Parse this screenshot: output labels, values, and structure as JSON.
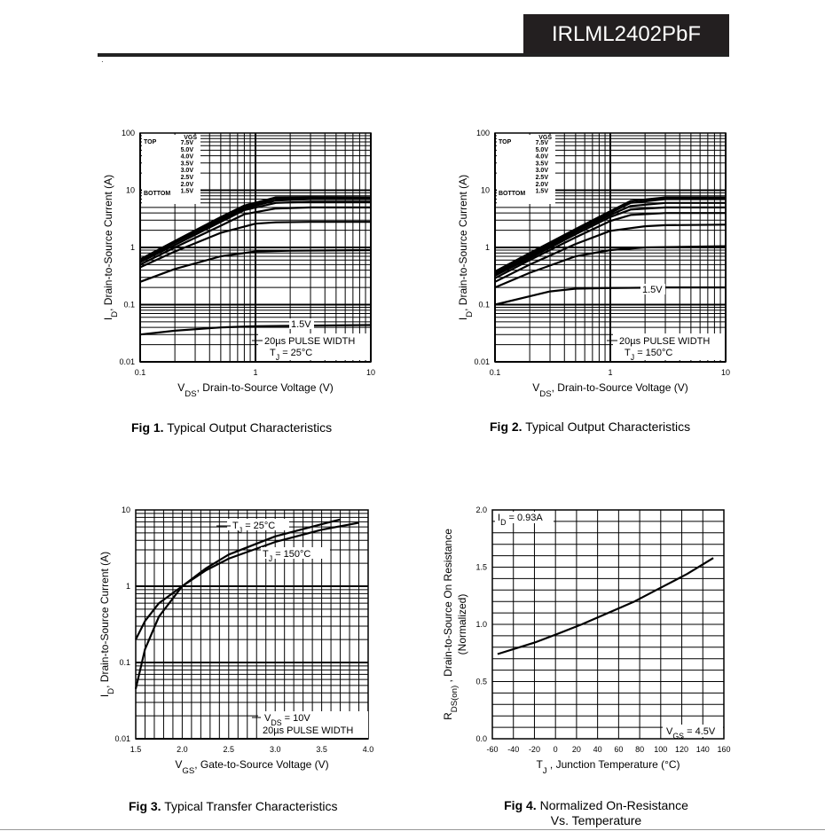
{
  "header": {
    "part_number": "IRLML2402PbF"
  },
  "figures": [
    {
      "fig_label": "Fig 1.",
      "caption": "Typical Output Characteristics"
    },
    {
      "fig_label": "Fig 2.",
      "caption": "Typical Output Characteristics"
    },
    {
      "fig_label": "Fig 3.",
      "caption": "Typical Transfer Characteristics"
    },
    {
      "fig_label": "Fig 4.",
      "caption": "Normalized On-Resistance",
      "caption2": "Vs. Temperature"
    }
  ],
  "chart_data": [
    {
      "type": "line",
      "title": "Typical Output Characteristics",
      "xscale": "log",
      "yscale": "log",
      "xlim": [
        0.1,
        10
      ],
      "ylim": [
        0.01,
        100
      ],
      "x_ticks": [
        "0.1",
        "1",
        "10"
      ],
      "y_ticks": [
        "0.01",
        "0.1",
        "1",
        "10",
        "100"
      ],
      "xlabel": "V_DS, Drain-to-Source Voltage (V)",
      "ylabel": "I_D, Drain-to-Source Current (A)",
      "legend_title": "VGS",
      "legend_top": "TOP",
      "legend_bottom": "BOTTOM",
      "legend": [
        "7.5V",
        "5.0V",
        "4.0V",
        "3.5V",
        "3.0V",
        "2.5V",
        "2.0V",
        "1.5V"
      ],
      "annotations": [
        "1.5V",
        "20µs PULSE WIDTH",
        "T_J = 25°C"
      ],
      "series": [
        {
          "name": "7.5V",
          "x": [
            0.1,
            0.2,
            0.5,
            0.8,
            1.5,
            3,
            10
          ],
          "y": [
            0.62,
            1.3,
            3.4,
            5.4,
            7.5,
            7.6,
            7.5
          ]
        },
        {
          "name": "5.0V",
          "x": [
            0.1,
            0.2,
            0.5,
            0.8,
            1.5,
            3,
            10
          ],
          "y": [
            0.6,
            1.25,
            3.2,
            5.0,
            7.2,
            7.4,
            7.3
          ]
        },
        {
          "name": "4.0V",
          "x": [
            0.1,
            0.2,
            0.5,
            0.8,
            1.5,
            3,
            10
          ],
          "y": [
            0.58,
            1.2,
            3.0,
            4.8,
            6.6,
            7.0,
            7.0
          ]
        },
        {
          "name": "3.5V",
          "x": [
            0.1,
            0.2,
            0.5,
            0.8,
            1.5,
            3,
            10
          ],
          "y": [
            0.55,
            1.1,
            2.8,
            4.5,
            6.0,
            6.3,
            6.3
          ]
        },
        {
          "name": "3.0V",
          "x": [
            0.1,
            0.2,
            0.5,
            0.8,
            1.5,
            3,
            10
          ],
          "y": [
            0.5,
            1.0,
            2.4,
            3.8,
            4.8,
            5.0,
            5.0
          ]
        },
        {
          "name": "2.5V",
          "x": [
            0.1,
            0.2,
            0.5,
            1,
            1.5,
            3,
            10
          ],
          "y": [
            0.45,
            0.85,
            1.8,
            2.6,
            2.75,
            2.8,
            2.8
          ]
        },
        {
          "name": "2.0V",
          "x": [
            0.1,
            0.2,
            0.5,
            1,
            2,
            10
          ],
          "y": [
            0.25,
            0.42,
            0.7,
            0.85,
            0.88,
            0.9
          ]
        },
        {
          "name": "1.5V",
          "x": [
            0.1,
            0.2,
            0.5,
            1,
            3,
            10
          ],
          "y": [
            0.03,
            0.035,
            0.04,
            0.042,
            0.043,
            0.044
          ]
        }
      ]
    },
    {
      "type": "line",
      "title": "Typical Output Characteristics",
      "xscale": "log",
      "yscale": "log",
      "xlim": [
        0.1,
        10
      ],
      "ylim": [
        0.01,
        100
      ],
      "x_ticks": [
        "0.1",
        "1",
        "10"
      ],
      "y_ticks": [
        "0.01",
        "0.1",
        "1",
        "10",
        "100"
      ],
      "xlabel": "V_DS, Drain-to-Source Voltage (V)",
      "ylabel": "I_D, Drain-to-Source Current (A)",
      "legend_title": "VGS",
      "legend_top": "TOP",
      "legend_bottom": "BOTTOM",
      "legend": [
        "7.5V",
        "5.0V",
        "4.0V",
        "3.5V",
        "3.0V",
        "2.5V",
        "2.0V",
        "1.5V"
      ],
      "annotations": [
        "1.5V",
        "20µs PULSE WIDTH",
        "T_J = 150°C"
      ],
      "series": [
        {
          "name": "7.5V",
          "x": [
            0.1,
            0.2,
            0.5,
            1,
            1.5,
            3,
            10
          ],
          "y": [
            0.38,
            0.8,
            2.1,
            4.3,
            6.5,
            7.5,
            7.5
          ]
        },
        {
          "name": "5.0V",
          "x": [
            0.1,
            0.2,
            0.5,
            1,
            1.5,
            3,
            10
          ],
          "y": [
            0.36,
            0.75,
            2.0,
            4.0,
            6.0,
            7.0,
            7.0
          ]
        },
        {
          "name": "4.0V",
          "x": [
            0.1,
            0.2,
            0.5,
            1,
            1.5,
            3,
            10
          ],
          "y": [
            0.34,
            0.7,
            1.85,
            3.7,
            5.3,
            6.0,
            6.0
          ]
        },
        {
          "name": "3.5V",
          "x": [
            0.1,
            0.2,
            0.5,
            1,
            1.5,
            3,
            10
          ],
          "y": [
            0.32,
            0.65,
            1.7,
            3.4,
            4.6,
            5.0,
            5.0
          ]
        },
        {
          "name": "3.0V",
          "x": [
            0.1,
            0.2,
            0.5,
            1,
            1.5,
            3,
            10
          ],
          "y": [
            0.29,
            0.6,
            1.5,
            2.9,
            3.7,
            4.0,
            4.0
          ]
        },
        {
          "name": "2.5V",
          "x": [
            0.1,
            0.2,
            0.5,
            1,
            2,
            3,
            10
          ],
          "y": [
            0.25,
            0.5,
            1.15,
            1.95,
            2.35,
            2.45,
            2.5
          ]
        },
        {
          "name": "2.0V",
          "x": [
            0.1,
            0.2,
            0.5,
            1,
            2,
            10
          ],
          "y": [
            0.2,
            0.36,
            0.7,
            0.9,
            1.0,
            1.05
          ]
        },
        {
          "name": "1.5V",
          "x": [
            0.1,
            0.2,
            0.3,
            0.5,
            1,
            3,
            10
          ],
          "y": [
            0.1,
            0.14,
            0.17,
            0.19,
            0.195,
            0.2,
            0.2
          ]
        }
      ]
    },
    {
      "type": "line",
      "title": "Typical Transfer Characteristics",
      "xscale": "linear",
      "yscale": "log",
      "xlim": [
        1.5,
        4.0
      ],
      "ylim": [
        0.01,
        10
      ],
      "x_ticks": [
        "1.5",
        "2.0",
        "2.5",
        "3.0",
        "3.5",
        "4.0"
      ],
      "y_ticks": [
        "0.01",
        "0.1",
        "1",
        "10"
      ],
      "xlabel": "V_GS, Gate-to-Source Voltage (V)",
      "ylabel": "I_D, Drain-to-Source Current (A)",
      "annotations": [
        "T_J = 25°C",
        "T_J = 150°C",
        "V_DS = 10V",
        "20µs PULSE WIDTH"
      ],
      "series": [
        {
          "name": "T_J = 150°C",
          "x": [
            1.5,
            1.6,
            1.75,
            2.0,
            2.25,
            2.5,
            3.0,
            3.5,
            3.9
          ],
          "y": [
            0.2,
            0.35,
            0.6,
            1.0,
            1.6,
            2.3,
            3.8,
            5.5,
            6.8
          ]
        },
        {
          "name": "T_J = 25°C",
          "x": [
            1.5,
            1.6,
            1.75,
            2.0,
            2.25,
            2.5,
            3.0,
            3.5,
            3.7
          ],
          "y": [
            0.045,
            0.15,
            0.4,
            1.0,
            1.7,
            2.6,
            4.5,
            6.5,
            7.5
          ]
        }
      ]
    },
    {
      "type": "line",
      "title": "Normalized On-Resistance Vs. Temperature",
      "xscale": "linear",
      "yscale": "linear",
      "xlim": [
        -60,
        160
      ],
      "ylim": [
        0.0,
        2.0
      ],
      "x_ticks": [
        "-60",
        "-40",
        "-20",
        "0",
        "20",
        "40",
        "60",
        "80",
        "100",
        "120",
        "140",
        "160"
      ],
      "y_ticks": [
        "0.0",
        "0.5",
        "1.0",
        "1.5",
        "2.0"
      ],
      "xlabel": "T_J , Junction Temperature (°C)",
      "ylabel": "R_DS(on) , Drain-to-Source On Resistance (Normalized)",
      "annotations": [
        "I_D = 0.93A",
        "V_GS = 4.5V"
      ],
      "series": [
        {
          "name": "R_DS(on)",
          "x": [
            -55,
            -20,
            0,
            25,
            50,
            75,
            100,
            125,
            150
          ],
          "y": [
            0.74,
            0.84,
            0.91,
            1.0,
            1.1,
            1.2,
            1.32,
            1.44,
            1.58
          ]
        }
      ]
    }
  ]
}
